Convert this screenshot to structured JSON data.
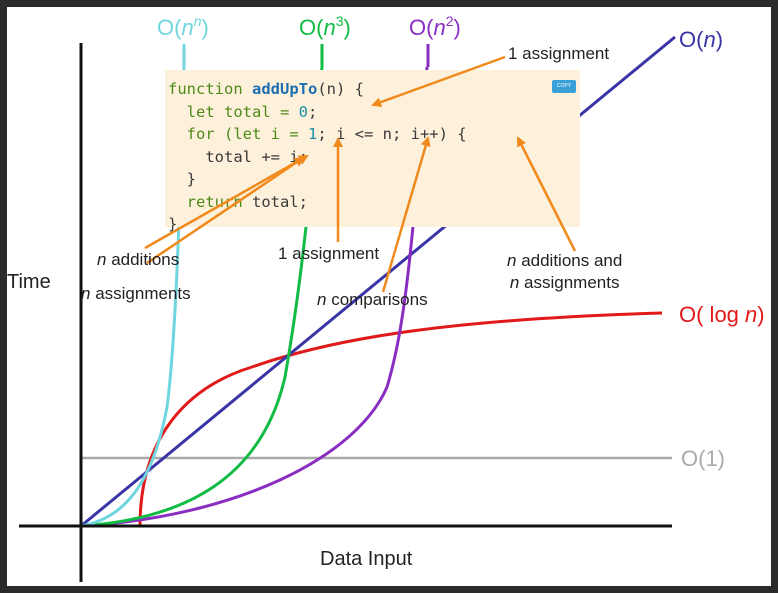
{
  "diagram": {
    "axes": {
      "y_label": "Time",
      "x_label": "Data Input"
    },
    "curves": [
      {
        "id": "n_pow_n",
        "label_base": "O(",
        "label_var": "n",
        "label_sup": "n",
        "label_end": ")",
        "color": "#6fd6e0"
      },
      {
        "id": "n_cubed",
        "label_base": "O(",
        "label_var": "n",
        "label_sup": "3",
        "label_end": ")",
        "color": "#11bb44"
      },
      {
        "id": "n_squared",
        "label_base": "O(",
        "label_var": "n",
        "label_sup": "2",
        "label_end": ")",
        "color": "#8a2ec2"
      },
      {
        "id": "linear",
        "label_base": "O(",
        "label_var": "n",
        "label_sup": "",
        "label_end": ")",
        "color": "#3a35a6"
      },
      {
        "id": "log_n",
        "label_base": "O( log ",
        "label_var": "n",
        "label_sup": "",
        "label_end": ")",
        "color": "#e01a1a"
      },
      {
        "id": "constant",
        "label_base": "O(1)",
        "label_var": "",
        "label_sup": "",
        "label_end": "",
        "color": "#aaaaaa"
      }
    ],
    "annotation_color": "#f08a1c"
  },
  "code": {
    "copy_label": "COPY",
    "line1": {
      "kw": "function",
      "fn": "addUpTo",
      "rest": "(n) {"
    },
    "line2": {
      "a": "  let total = ",
      "num": "0",
      "b": ";"
    },
    "line3": {
      "a": "  for (let i = ",
      "num": "1",
      "b": "; i <= n; i++) {"
    },
    "line4": {
      "a": "    total += ",
      "num": "i",
      "b": ";"
    },
    "line5": "  }",
    "line6": {
      "kw": "  return",
      "rest": " total;"
    },
    "line7": "}"
  },
  "annotations": {
    "top_assignment": "1 assignment",
    "n_additions_var": "n",
    "n_additions_rest": " additions",
    "n_assignments_var": "n",
    "n_assignments_rest": " assignments",
    "mid_assignment": "1 assignment",
    "n_comparisons_var": "n",
    "n_comparisons_rest": " comparisons",
    "add_assign_var1": "n",
    "add_assign_rest1": " additions and",
    "add_assign_var2": "n",
    "add_assign_rest2": " assignments"
  }
}
